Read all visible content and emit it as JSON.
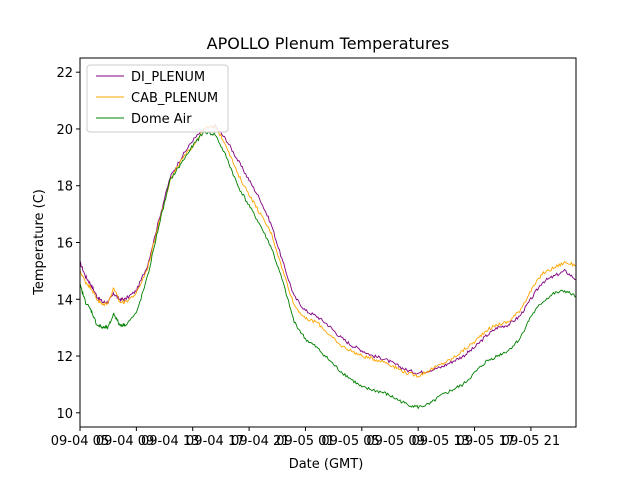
{
  "chart_data": {
    "type": "line",
    "title": "APOLLO Plenum Temperatures",
    "xlabel": "Date (GMT)",
    "ylabel": "Temperature (C)",
    "xlim": [
      0,
      44
    ],
    "ylim": [
      9.5,
      22.5
    ],
    "yticks": [
      10,
      12,
      14,
      16,
      18,
      20,
      22
    ],
    "xtick_positions": [
      0,
      5,
      10,
      15,
      20,
      25,
      30,
      35,
      40
    ],
    "xtick_labels": [
      "09-04 05",
      "09-04 09",
      "09-04 13",
      "09-04 17",
      "09-04 21",
      "09-05 01",
      "09-05 05",
      "09-05 09",
      "09-05 13",
      "09-05 17",
      "09-05 21"
    ],
    "xtick_label_positions": [
      0,
      4,
      8,
      12,
      16,
      20,
      24,
      28,
      32,
      36,
      40
    ],
    "grid": false,
    "legend_position": "top-left",
    "series": [
      {
        "name": "DI_PLENUM",
        "color": "#800080",
        "x": [
          0,
          0.5,
          1,
          1.5,
          2,
          2.5,
          3,
          3.5,
          4,
          5,
          6,
          7,
          8,
          9,
          10,
          11,
          12,
          13,
          14,
          15,
          16,
          17,
          18,
          19,
          20,
          21,
          22,
          23,
          24,
          25,
          26,
          27,
          28,
          29,
          30,
          31,
          32,
          33,
          34,
          35,
          36,
          37,
          38,
          39,
          40,
          41,
          42,
          43,
          44
        ],
        "y": [
          15.3,
          14.8,
          14.5,
          14.1,
          13.9,
          13.9,
          14.2,
          14.0,
          14.0,
          14.3,
          15.2,
          16.8,
          18.3,
          19.0,
          19.6,
          20.0,
          20.1,
          19.6,
          18.9,
          18.2,
          17.5,
          16.6,
          15.3,
          14.1,
          13.6,
          13.4,
          13.1,
          12.7,
          12.4,
          12.2,
          12.0,
          11.9,
          11.7,
          11.5,
          11.4,
          11.5,
          11.6,
          11.8,
          12.0,
          12.3,
          12.7,
          13.0,
          13.1,
          13.4,
          14.0,
          14.6,
          14.8,
          15.0,
          14.7
        ]
      },
      {
        "name": "CAB_PLENUM",
        "color": "#ffa500",
        "x": [
          0,
          0.5,
          1,
          1.5,
          2,
          2.5,
          3,
          3.5,
          4,
          5,
          6,
          7,
          8,
          9,
          10,
          11,
          12,
          13,
          14,
          15,
          16,
          17,
          18,
          19,
          20,
          21,
          22,
          23,
          24,
          25,
          26,
          27,
          28,
          29,
          30,
          31,
          32,
          33,
          34,
          35,
          36,
          37,
          38,
          39,
          40,
          41,
          42,
          43,
          44
        ],
        "y": [
          15.0,
          14.6,
          14.4,
          14.0,
          13.8,
          13.9,
          14.4,
          13.9,
          13.9,
          14.2,
          15.1,
          16.7,
          18.2,
          18.9,
          19.4,
          20.0,
          20.1,
          19.4,
          18.4,
          17.7,
          17.0,
          16.3,
          15.0,
          13.8,
          13.3,
          13.2,
          12.8,
          12.4,
          12.2,
          12.0,
          11.9,
          11.8,
          11.6,
          11.4,
          11.3,
          11.5,
          11.7,
          11.9,
          12.2,
          12.5,
          12.9,
          13.1,
          13.2,
          13.6,
          14.3,
          14.9,
          15.1,
          15.3,
          15.2
        ]
      },
      {
        "name": "Dome Air",
        "color": "#008000",
        "x": [
          0,
          0.5,
          1,
          1.5,
          2,
          2.5,
          3,
          3.5,
          4,
          5,
          6,
          7,
          8,
          9,
          10,
          11,
          12,
          13,
          14,
          15,
          16,
          17,
          18,
          19,
          20,
          21,
          22,
          23,
          24,
          25,
          26,
          27,
          28,
          29,
          30,
          31,
          32,
          33,
          34,
          35,
          36,
          37,
          38,
          39,
          40,
          41,
          42,
          43,
          44
        ],
        "y": [
          14.5,
          13.9,
          13.6,
          13.1,
          13.0,
          13.0,
          13.5,
          13.1,
          13.1,
          13.5,
          14.8,
          16.6,
          18.2,
          18.8,
          19.4,
          19.9,
          19.8,
          19.0,
          18.0,
          17.3,
          16.6,
          15.8,
          14.6,
          13.2,
          12.6,
          12.3,
          11.9,
          11.5,
          11.2,
          10.9,
          10.8,
          10.7,
          10.5,
          10.3,
          10.2,
          10.3,
          10.6,
          10.8,
          11.0,
          11.4,
          11.8,
          12.0,
          12.2,
          12.6,
          13.4,
          13.9,
          14.2,
          14.3,
          14.1
        ]
      }
    ]
  }
}
